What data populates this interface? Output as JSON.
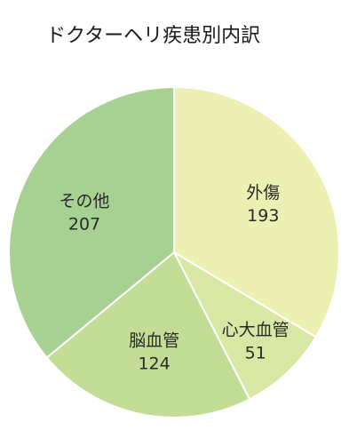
{
  "chart_data": {
    "type": "pie",
    "title": "ドクターヘリ疾患別内訳",
    "slices": [
      {
        "label": "外傷",
        "value": 193,
        "color": "#ecf0b2"
      },
      {
        "label": "心大血管",
        "value": 51,
        "color": "#d9e7a4"
      },
      {
        "label": "脳血管",
        "value": 124,
        "color": "#c3dd97"
      },
      {
        "label": "その他",
        "value": 207,
        "color": "#a6d193"
      }
    ],
    "start": "12 o'clock",
    "direction": "clockwise",
    "slice_border_color": "#ffffff",
    "legend": "none"
  }
}
